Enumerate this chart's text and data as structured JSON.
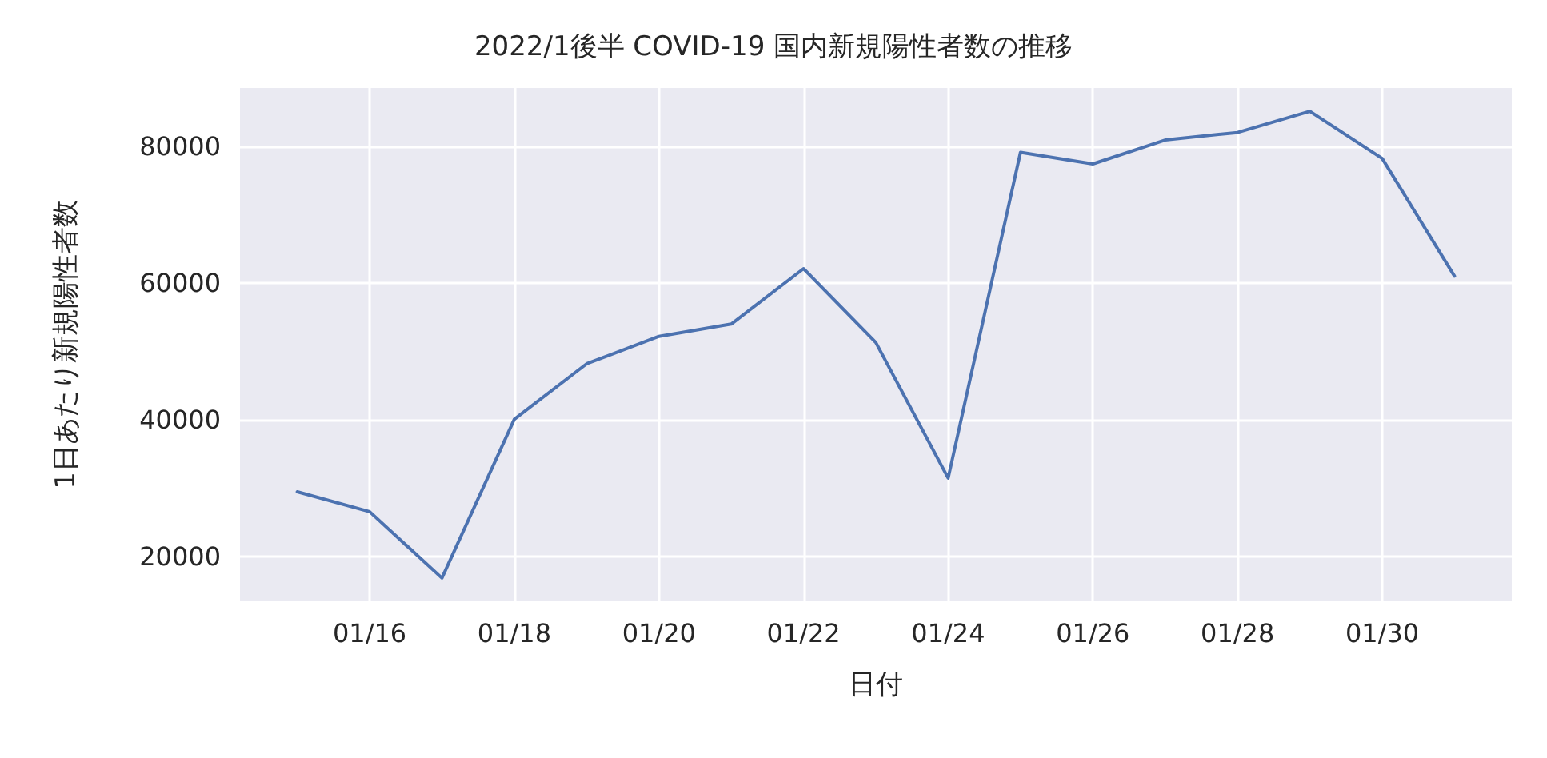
{
  "chart_data": {
    "type": "line",
    "title": "2022/1後半 COVID-19 国内新規陽性者数の推移",
    "xlabel": "日付",
    "ylabel": "1日あたり新規陽性者数",
    "x": [
      "2022-01-15",
      "2022-01-16",
      "2022-01-17",
      "2022-01-18",
      "2022-01-19",
      "2022-01-20",
      "2022-01-21",
      "2022-01-22",
      "2022-01-23",
      "2022-01-24",
      "2022-01-25",
      "2022-01-26",
      "2022-01-27",
      "2022-01-28",
      "2022-01-29",
      "2022-01-30",
      "2022-01-31"
    ],
    "series": [
      {
        "color": "#4c72b0",
        "values": [
          29500,
          26600,
          16900,
          40100,
          48200,
          52200,
          54000,
          62100,
          51300,
          31500,
          79100,
          77400,
          80900,
          82000,
          85100,
          78200,
          61000
        ]
      }
    ],
    "xlim": [
      "2022-01-14T05:00",
      "2022-01-31T19:00"
    ],
    "xticks": [
      {
        "value": "2022-01-16",
        "label": "01/16"
      },
      {
        "value": "2022-01-18",
        "label": "01/18"
      },
      {
        "value": "2022-01-20",
        "label": "01/20"
      },
      {
        "value": "2022-01-22",
        "label": "01/22"
      },
      {
        "value": "2022-01-24",
        "label": "01/24"
      },
      {
        "value": "2022-01-26",
        "label": "01/26"
      },
      {
        "value": "2022-01-28",
        "label": "01/28"
      },
      {
        "value": "2022-01-30",
        "label": "01/30"
      }
    ],
    "ylim": [
      13500,
      88500
    ],
    "yticks": [
      20000,
      40000,
      60000,
      80000
    ],
    "grid": true,
    "marker": "none",
    "line_style": "solid"
  }
}
